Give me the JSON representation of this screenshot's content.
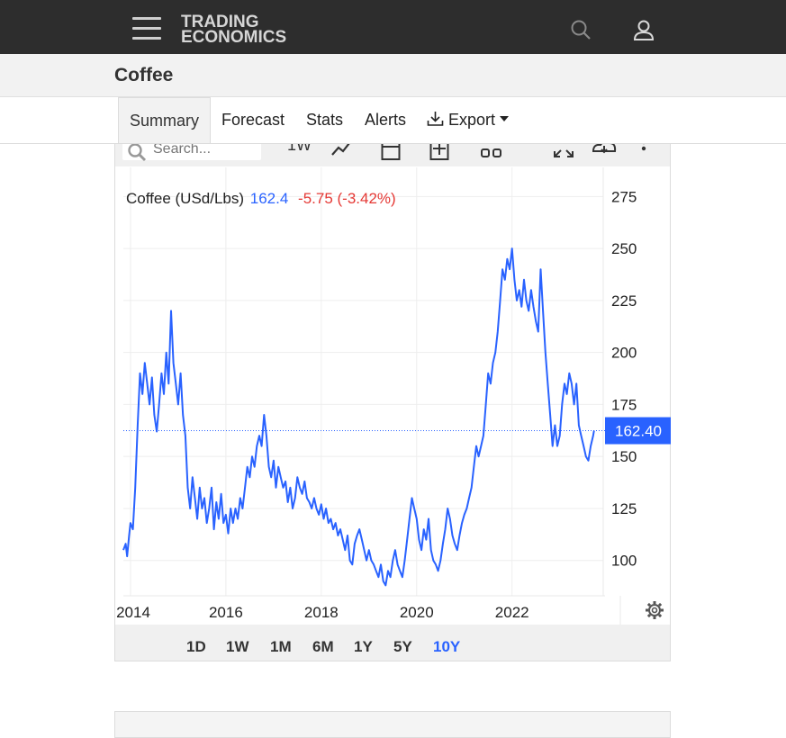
{
  "header": {
    "logo_line1": "TRADING",
    "logo_line2": "ECONOMICS",
    "menu_icon": "hamburger-icon",
    "search_icon": "search-icon",
    "user_icon": "user-icon"
  },
  "page": {
    "title": "Coffee"
  },
  "tabs": [
    {
      "label": "Summary",
      "active": true
    },
    {
      "label": "Forecast"
    },
    {
      "label": "Stats"
    },
    {
      "label": "Alerts"
    },
    {
      "label": "Export"
    }
  ],
  "toolbar": {
    "search_placeholder": "Search...",
    "interval_label": "1W",
    "icons": [
      "line-chart-icon",
      "calendar-icon",
      "add-panel-icon",
      "compare-icon",
      "fullscreen-icon",
      "download-icon",
      "more-icon"
    ]
  },
  "legend": {
    "series": "Coffee (USd/Lbs)",
    "value": "162.4",
    "change": "-5.75 (-3.42%)"
  },
  "colors": {
    "line": "#2962ff",
    "negative": "#e53935",
    "price_tag": "#2962ff"
  },
  "chart_data": {
    "type": "line",
    "x_unit": "year",
    "xlim": [
      2013.85,
      2023.95
    ],
    "ylim": [
      83,
      289
    ],
    "x_ticks": [
      "2014",
      "2016",
      "2018",
      "2020",
      "2022"
    ],
    "y_ticks": [
      "100",
      "125",
      "150",
      "175",
      "200",
      "225",
      "250",
      "275"
    ],
    "last_price_label": "162.40",
    "last_price": 162.4,
    "series": [
      {
        "points": [
          [
            2013.85,
            105
          ],
          [
            2013.9,
            108
          ],
          [
            2013.93,
            102
          ],
          [
            2013.97,
            112
          ],
          [
            2014.0,
            118
          ],
          [
            2014.05,
            115
          ],
          [
            2014.1,
            135
          ],
          [
            2014.15,
            165
          ],
          [
            2014.2,
            190
          ],
          [
            2014.25,
            180
          ],
          [
            2014.3,
            195
          ],
          [
            2014.35,
            185
          ],
          [
            2014.4,
            175
          ],
          [
            2014.45,
            188
          ],
          [
            2014.5,
            170
          ],
          [
            2014.55,
            162
          ],
          [
            2014.6,
            175
          ],
          [
            2014.65,
            190
          ],
          [
            2014.7,
            180
          ],
          [
            2014.75,
            200
          ],
          [
            2014.8,
            185
          ],
          [
            2014.85,
            220
          ],
          [
            2014.9,
            195
          ],
          [
            2014.95,
            185
          ],
          [
            2015.0,
            175
          ],
          [
            2015.05,
            190
          ],
          [
            2015.1,
            170
          ],
          [
            2015.15,
            160
          ],
          [
            2015.2,
            135
          ],
          [
            2015.25,
            125
          ],
          [
            2015.3,
            140
          ],
          [
            2015.35,
            130
          ],
          [
            2015.4,
            120
          ],
          [
            2015.45,
            135
          ],
          [
            2015.5,
            125
          ],
          [
            2015.55,
            130
          ],
          [
            2015.6,
            118
          ],
          [
            2015.65,
            125
          ],
          [
            2015.7,
            135
          ],
          [
            2015.75,
            115
          ],
          [
            2015.8,
            128
          ],
          [
            2015.85,
            120
          ],
          [
            2015.9,
            132
          ],
          [
            2015.95,
            118
          ],
          [
            2016.0,
            122
          ],
          [
            2016.05,
            113
          ],
          [
            2016.1,
            125
          ],
          [
            2016.15,
            118
          ],
          [
            2016.2,
            125
          ],
          [
            2016.25,
            120
          ],
          [
            2016.3,
            130
          ],
          [
            2016.35,
            125
          ],
          [
            2016.4,
            135
          ],
          [
            2016.45,
            145
          ],
          [
            2016.5,
            140
          ],
          [
            2016.55,
            150
          ],
          [
            2016.6,
            145
          ],
          [
            2016.65,
            155
          ],
          [
            2016.7,
            160
          ],
          [
            2016.75,
            155
          ],
          [
            2016.8,
            170
          ],
          [
            2016.85,
            160
          ],
          [
            2016.9,
            145
          ],
          [
            2016.95,
            140
          ],
          [
            2017.0,
            148
          ],
          [
            2017.05,
            135
          ],
          [
            2017.1,
            145
          ],
          [
            2017.15,
            140
          ],
          [
            2017.2,
            135
          ],
          [
            2017.25,
            138
          ],
          [
            2017.3,
            128
          ],
          [
            2017.35,
            135
          ],
          [
            2017.4,
            125
          ],
          [
            2017.45,
            130
          ],
          [
            2017.5,
            140
          ],
          [
            2017.55,
            135
          ],
          [
            2017.6,
            132
          ],
          [
            2017.65,
            138
          ],
          [
            2017.7,
            130
          ],
          [
            2017.75,
            128
          ],
          [
            2017.8,
            125
          ],
          [
            2017.85,
            130
          ],
          [
            2017.9,
            125
          ],
          [
            2017.95,
            122
          ],
          [
            2018.0,
            127
          ],
          [
            2018.05,
            120
          ],
          [
            2018.1,
            125
          ],
          [
            2018.15,
            118
          ],
          [
            2018.2,
            120
          ],
          [
            2018.25,
            115
          ],
          [
            2018.3,
            118
          ],
          [
            2018.35,
            112
          ],
          [
            2018.4,
            115
          ],
          [
            2018.45,
            110
          ],
          [
            2018.5,
            105
          ],
          [
            2018.55,
            112
          ],
          [
            2018.6,
            100
          ],
          [
            2018.65,
            98
          ],
          [
            2018.7,
            108
          ],
          [
            2018.75,
            112
          ],
          [
            2018.8,
            115
          ],
          [
            2018.85,
            110
          ],
          [
            2018.9,
            105
          ],
          [
            2018.95,
            100
          ],
          [
            2019.0,
            105
          ],
          [
            2019.05,
            100
          ],
          [
            2019.1,
            98
          ],
          [
            2019.15,
            95
          ],
          [
            2019.2,
            92
          ],
          [
            2019.25,
            98
          ],
          [
            2019.3,
            90
          ],
          [
            2019.35,
            88
          ],
          [
            2019.4,
            95
          ],
          [
            2019.45,
            92
          ],
          [
            2019.5,
            100
          ],
          [
            2019.55,
            105
          ],
          [
            2019.6,
            98
          ],
          [
            2019.65,
            95
          ],
          [
            2019.7,
            92
          ],
          [
            2019.75,
            100
          ],
          [
            2019.8,
            110
          ],
          [
            2019.85,
            120
          ],
          [
            2019.9,
            130
          ],
          [
            2019.95,
            125
          ],
          [
            2020.0,
            120
          ],
          [
            2020.05,
            110
          ],
          [
            2020.1,
            105
          ],
          [
            2020.15,
            115
          ],
          [
            2020.2,
            110
          ],
          [
            2020.25,
            120
          ],
          [
            2020.3,
            105
          ],
          [
            2020.35,
            100
          ],
          [
            2020.4,
            98
          ],
          [
            2020.45,
            95
          ],
          [
            2020.5,
            100
          ],
          [
            2020.55,
            108
          ],
          [
            2020.6,
            115
          ],
          [
            2020.65,
            125
          ],
          [
            2020.7,
            120
          ],
          [
            2020.75,
            112
          ],
          [
            2020.8,
            108
          ],
          [
            2020.85,
            105
          ],
          [
            2020.9,
            112
          ],
          [
            2020.95,
            118
          ],
          [
            2021.0,
            122
          ],
          [
            2021.05,
            125
          ],
          [
            2021.1,
            130
          ],
          [
            2021.15,
            135
          ],
          [
            2021.2,
            145
          ],
          [
            2021.25,
            155
          ],
          [
            2021.3,
            150
          ],
          [
            2021.35,
            155
          ],
          [
            2021.4,
            160
          ],
          [
            2021.45,
            175
          ],
          [
            2021.5,
            190
          ],
          [
            2021.55,
            185
          ],
          [
            2021.6,
            195
          ],
          [
            2021.65,
            200
          ],
          [
            2021.7,
            210
          ],
          [
            2021.75,
            225
          ],
          [
            2021.8,
            240
          ],
          [
            2021.85,
            235
          ],
          [
            2021.9,
            245
          ],
          [
            2021.95,
            240
          ],
          [
            2022.0,
            250
          ],
          [
            2022.05,
            235
          ],
          [
            2022.1,
            225
          ],
          [
            2022.15,
            230
          ],
          [
            2022.2,
            222
          ],
          [
            2022.25,
            235
          ],
          [
            2022.3,
            225
          ],
          [
            2022.35,
            220
          ],
          [
            2022.4,
            230
          ],
          [
            2022.45,
            222
          ],
          [
            2022.5,
            215
          ],
          [
            2022.55,
            210
          ],
          [
            2022.6,
            240
          ],
          [
            2022.65,
            220
          ],
          [
            2022.7,
            200
          ],
          [
            2022.75,
            185
          ],
          [
            2022.8,
            170
          ],
          [
            2022.85,
            155
          ],
          [
            2022.9,
            165
          ],
          [
            2022.95,
            155
          ],
          [
            2023.0,
            160
          ],
          [
            2023.05,
            175
          ],
          [
            2023.1,
            185
          ],
          [
            2023.15,
            180
          ],
          [
            2023.2,
            190
          ],
          [
            2023.25,
            185
          ],
          [
            2023.3,
            175
          ],
          [
            2023.35,
            185
          ],
          [
            2023.4,
            165
          ],
          [
            2023.45,
            160
          ],
          [
            2023.5,
            155
          ],
          [
            2023.55,
            150
          ],
          [
            2023.6,
            148
          ],
          [
            2023.65,
            155
          ],
          [
            2023.7,
            160
          ],
          [
            2023.72,
            162.4
          ]
        ]
      }
    ]
  },
  "range_buttons": [
    {
      "label": "1D"
    },
    {
      "label": "1W"
    },
    {
      "label": "1M"
    },
    {
      "label": "6M"
    },
    {
      "label": "1Y"
    },
    {
      "label": "5Y"
    },
    {
      "label": "10Y",
      "active": true
    }
  ]
}
